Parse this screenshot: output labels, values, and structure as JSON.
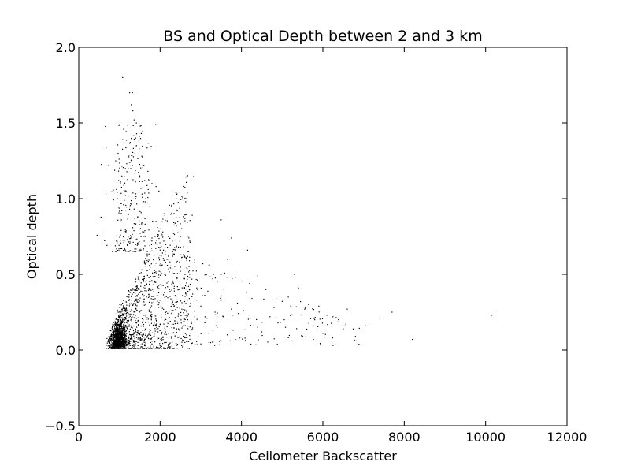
{
  "chart_data": {
    "type": "scatter",
    "title": "BS and Optical Depth between 2 and 3 km",
    "xlabel": "Ceilometer Backscatter",
    "ylabel": "Optical depth",
    "xlim": [
      0,
      12000
    ],
    "ylim": [
      -0.5,
      2.0
    ],
    "xticks": [
      0,
      2000,
      4000,
      6000,
      8000,
      10000,
      12000
    ],
    "xtick_labels": [
      "0",
      "2000",
      "4000",
      "6000",
      "8000",
      "10000",
      "12000"
    ],
    "yticks": [
      -0.5,
      0.0,
      0.5,
      1.0,
      1.5,
      2.0
    ],
    "ytick_labels": [
      "−0.5",
      "0.0",
      "0.5",
      "1.0",
      "1.5",
      "2.0"
    ],
    "grid": false,
    "marker_color": "#000000",
    "series": [
      {
        "points": [
          [
            1080,
            1.8
          ],
          [
            1250,
            1.7
          ],
          [
            1320,
            1.7
          ],
          [
            1290,
            1.62
          ],
          [
            1330,
            1.58
          ],
          [
            1360,
            1.52
          ],
          [
            1400,
            1.4
          ],
          [
            1480,
            1.38
          ],
          [
            1420,
            1.35
          ],
          [
            1550,
            1.28
          ],
          [
            1260,
            1.24
          ],
          [
            1600,
            1.22
          ],
          [
            1700,
            1.18
          ],
          [
            1500,
            1.15
          ],
          [
            1620,
            1.12
          ],
          [
            980,
            1.12
          ],
          [
            1030,
            1.11
          ],
          [
            1800,
            1.1
          ],
          [
            1900,
            1.08
          ],
          [
            1970,
            1.05
          ],
          [
            1150,
            1.02
          ],
          [
            1400,
            1.0
          ],
          [
            1600,
            0.98
          ],
          [
            1750,
            0.95
          ],
          [
            2100,
            0.9
          ],
          [
            1250,
            0.93
          ],
          [
            1450,
            0.88
          ],
          [
            1900,
            0.85
          ],
          [
            2000,
            0.8
          ],
          [
            2200,
            0.75
          ],
          [
            2300,
            0.72
          ],
          [
            2450,
            0.68
          ],
          [
            2700,
            0.65
          ],
          [
            2600,
            0.62
          ],
          [
            2850,
            0.58
          ],
          [
            3050,
            0.57
          ],
          [
            3200,
            0.56
          ],
          [
            3500,
            0.86
          ],
          [
            3750,
            0.74
          ],
          [
            4150,
            0.66
          ],
          [
            3650,
            0.6
          ],
          [
            3850,
            0.48
          ],
          [
            4200,
            0.44
          ],
          [
            4400,
            0.49
          ],
          [
            4600,
            0.4
          ],
          [
            4850,
            0.34
          ],
          [
            5300,
            0.5
          ],
          [
            5150,
            0.35
          ],
          [
            5450,
            0.32
          ],
          [
            5650,
            0.3
          ],
          [
            5900,
            0.29
          ],
          [
            6100,
            0.23
          ],
          [
            6600,
            0.27
          ],
          [
            6500,
            0.14
          ],
          [
            7050,
            0.16
          ],
          [
            7700,
            0.25
          ],
          [
            10150,
            0.23
          ],
          [
            5050,
            0.2
          ],
          [
            5800,
            0.2
          ],
          [
            5500,
            0.09
          ],
          [
            6250,
            0.03
          ],
          [
            5250,
            0.06
          ],
          [
            4950,
            0.18
          ],
          [
            4700,
            0.22
          ],
          [
            4300,
            0.16
          ],
          [
            4050,
            0.26
          ],
          [
            3900,
            0.31
          ],
          [
            3750,
            0.27
          ],
          [
            3550,
            0.22
          ],
          [
            3350,
            0.25
          ],
          [
            3150,
            0.21
          ],
          [
            3000,
            0.29
          ],
          [
            2900,
            0.33
          ],
          [
            3400,
            0.15
          ],
          [
            3850,
            0.07
          ],
          [
            3650,
            0.1
          ],
          [
            3200,
            0.05
          ],
          [
            3000,
            0.04
          ],
          [
            2650,
            0.1
          ],
          [
            2450,
            0.14
          ],
          [
            2400,
            0.03
          ],
          [
            2550,
            0.02
          ],
          [
            2150,
            0.05
          ],
          [
            2000,
            0.03
          ],
          [
            1800,
            0.04
          ],
          [
            1650,
            0.03
          ],
          [
            950,
            1.0
          ],
          [
            1100,
            0.96
          ],
          [
            1050,
            0.86
          ],
          [
            1600,
            0.78
          ],
          [
            1800,
            0.74
          ],
          [
            2000,
            0.66
          ],
          [
            2200,
            0.62
          ],
          [
            2400,
            0.58
          ],
          [
            2500,
            0.52
          ],
          [
            2600,
            0.47
          ],
          [
            2700,
            0.42
          ],
          [
            2800,
            0.37
          ],
          [
            2900,
            0.41
          ],
          [
            2750,
            0.31
          ],
          [
            2550,
            0.36
          ],
          [
            2350,
            0.39
          ],
          [
            2650,
            0.26
          ],
          [
            2450,
            0.24
          ],
          [
            2250,
            0.19
          ],
          [
            2850,
            0.22
          ],
          [
            3100,
            0.18
          ],
          [
            3300,
            0.13
          ],
          [
            3500,
            0.33
          ],
          [
            4500,
            0.12
          ],
          [
            4800,
            0.28
          ],
          [
            5400,
            0.41
          ],
          [
            6000,
            0.11
          ],
          [
            6800,
            0.09
          ],
          [
            7400,
            0.21
          ],
          [
            8200,
            0.07
          ],
          [
            3400,
            0.45
          ]
        ]
      }
    ]
  }
}
